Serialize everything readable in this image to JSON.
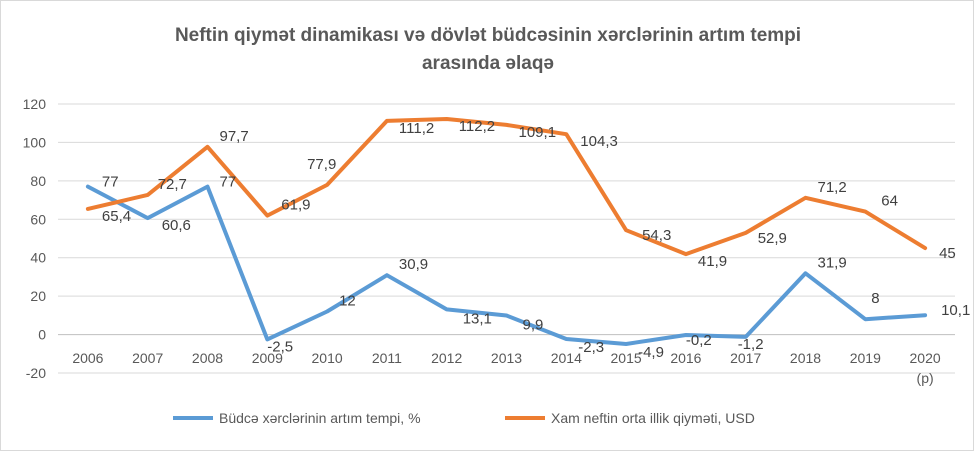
{
  "chart_data": {
    "type": "line",
    "title_line1": "Neftin qiymət dinamikası  və dövlət büdcəsinin  xərclərinin artım tempi",
    "title_line2": "arasında əlaqə",
    "categories": [
      "2006",
      "2007",
      "2008",
      "2009",
      "2010",
      "2011",
      "2012",
      "2013",
      "2014",
      "2015",
      "2016",
      "2017",
      "2018",
      "2019",
      "2020"
    ],
    "category_suffix": "(p)",
    "ylim": [
      -20,
      120
    ],
    "yticks": [
      -20,
      0,
      20,
      40,
      60,
      80,
      100,
      120
    ],
    "grid": true,
    "legend_position": "bottom",
    "series": [
      {
        "name": "Büdcə xərclərinin artım tempi, %",
        "color": "#5b9bd5",
        "values": [
          77,
          60.6,
          77,
          -2.5,
          12,
          30.9,
          13.1,
          9.9,
          -2.3,
          -4.9,
          -0.2,
          -1.2,
          31.9,
          8,
          10.1
        ],
        "labels": [
          "77",
          "60,6",
          "77",
          "-2,5",
          "12",
          "30,9",
          "13,1",
          "9,9",
          "-2,3",
          "-4,9",
          "-0,2",
          "-1,2",
          "31,9",
          "8",
          "10,1"
        ]
      },
      {
        "name": "Xam neftin orta illik qiyməti, USD",
        "color": "#ed7d31",
        "values": [
          65.4,
          72.7,
          97.7,
          61.9,
          77.9,
          111.2,
          112.2,
          109.1,
          104.3,
          54.3,
          41.9,
          52.9,
          71.2,
          64,
          45
        ],
        "labels": [
          "65,4",
          "72,7",
          "97,7",
          "61,9",
          "77,9",
          "111,2",
          "112,2",
          "109,1",
          "104,3",
          "54,3",
          "41,9",
          "52,9",
          "71,2",
          "64",
          "45"
        ]
      }
    ]
  }
}
